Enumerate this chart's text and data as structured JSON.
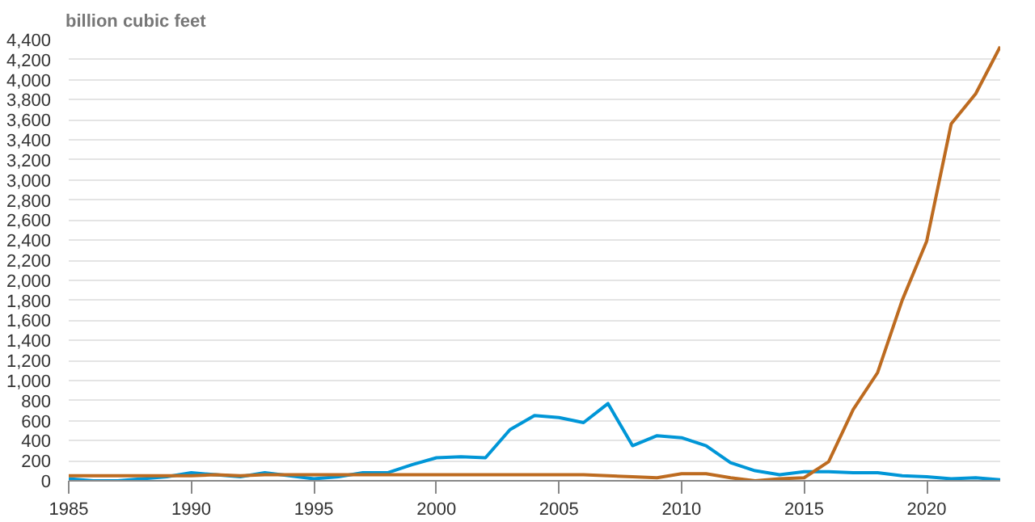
{
  "chart_data": {
    "type": "line",
    "ylabel": "billion cubic feet",
    "x": [
      1985,
      1986,
      1987,
      1988,
      1989,
      1990,
      1991,
      1992,
      1993,
      1994,
      1995,
      1996,
      1997,
      1998,
      1999,
      2000,
      2001,
      2002,
      2003,
      2004,
      2005,
      2006,
      2007,
      2008,
      2009,
      2010,
      2011,
      2012,
      2013,
      2014,
      2015,
      2016,
      2017,
      2018,
      2019,
      2020,
      2021,
      2022,
      2023
    ],
    "series": [
      {
        "color": "#0096d7",
        "values": [
          20,
          0,
          0,
          20,
          40,
          80,
          60,
          40,
          80,
          50,
          20,
          40,
          80,
          80,
          160,
          230,
          240,
          230,
          510,
          650,
          630,
          580,
          770,
          350,
          450,
          430,
          350,
          180,
          100,
          60,
          90,
          90,
          80,
          80,
          50,
          40,
          20,
          30,
          10
        ]
      },
      {
        "color": "#bd6b20",
        "values": [
          50,
          50,
          50,
          50,
          50,
          50,
          60,
          50,
          60,
          60,
          60,
          60,
          60,
          60,
          60,
          60,
          60,
          60,
          60,
          60,
          60,
          60,
          50,
          40,
          30,
          70,
          70,
          30,
          0,
          20,
          30,
          190,
          710,
          1080,
          1800,
          2390,
          3560,
          3860,
          4330
        ]
      }
    ],
    "xlim": [
      1985,
      2023
    ],
    "ylim": [
      0,
      4400
    ],
    "xticks": [
      1985,
      1990,
      1995,
      2000,
      2005,
      2010,
      2015,
      2020
    ],
    "yticks": [
      0,
      200,
      400,
      600,
      800,
      {
        "value": 1000,
        "label": "1,000"
      },
      {
        "value": 1200,
        "label": "1,200"
      },
      {
        "value": 1400,
        "label": "1,400"
      },
      {
        "value": 1600,
        "label": "1,600"
      },
      {
        "value": 1800,
        "label": "1,800"
      },
      {
        "value": 2000,
        "label": "2,000"
      },
      {
        "value": 2200,
        "label": "2,200"
      },
      {
        "value": 2400,
        "label": "2,400"
      },
      {
        "value": 2600,
        "label": "2,600"
      },
      {
        "value": 2800,
        "label": "2,800"
      },
      {
        "value": 3000,
        "label": "3,000"
      },
      {
        "value": 3200,
        "label": "3,200"
      },
      {
        "value": 3400,
        "label": "3,400"
      },
      {
        "value": 3600,
        "label": "3,600"
      },
      {
        "value": 3800,
        "label": "3,800"
      },
      {
        "value": 4000,
        "label": "4,000"
      },
      {
        "value": 4200,
        "label": "4,200"
      },
      {
        "value": 4400,
        "label": "4,400"
      }
    ],
    "grid": "y",
    "marker": "none",
    "line_style": "solid"
  }
}
